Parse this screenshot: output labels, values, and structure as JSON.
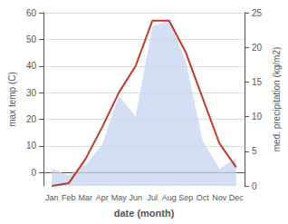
{
  "chart_data": {
    "type": "line",
    "xlabel": "date (month)",
    "ylabel": "max temp (C)",
    "y2label": "med. precipitation (kg/m2)",
    "categories": [
      "Jan",
      "Feb",
      "Mar",
      "Apr",
      "May",
      "Jun",
      "Jul",
      "Aug",
      "Sep",
      "Oct",
      "Nov",
      "Dec"
    ],
    "series": [
      {
        "type": "area",
        "axis": "y2",
        "color": "#c5d4ef",
        "values": [
          2.5,
          1.5,
          3,
          6,
          13,
          10,
          23,
          24,
          18,
          6.5,
          2.5,
          4
        ]
      },
      {
        "type": "line",
        "axis": "y",
        "color": "#c0392b",
        "values": [
          -5,
          -4,
          5,
          17,
          30,
          40,
          57,
          57,
          45,
          28,
          11,
          2
        ]
      }
    ],
    "ylim": [
      -5,
      60
    ],
    "yticks": [
      0,
      10,
      20,
      30,
      40,
      50,
      60
    ],
    "y2lim": [
      0,
      25
    ],
    "y2ticks": [
      0,
      5,
      10,
      15,
      20,
      25
    ],
    "grid": true
  }
}
